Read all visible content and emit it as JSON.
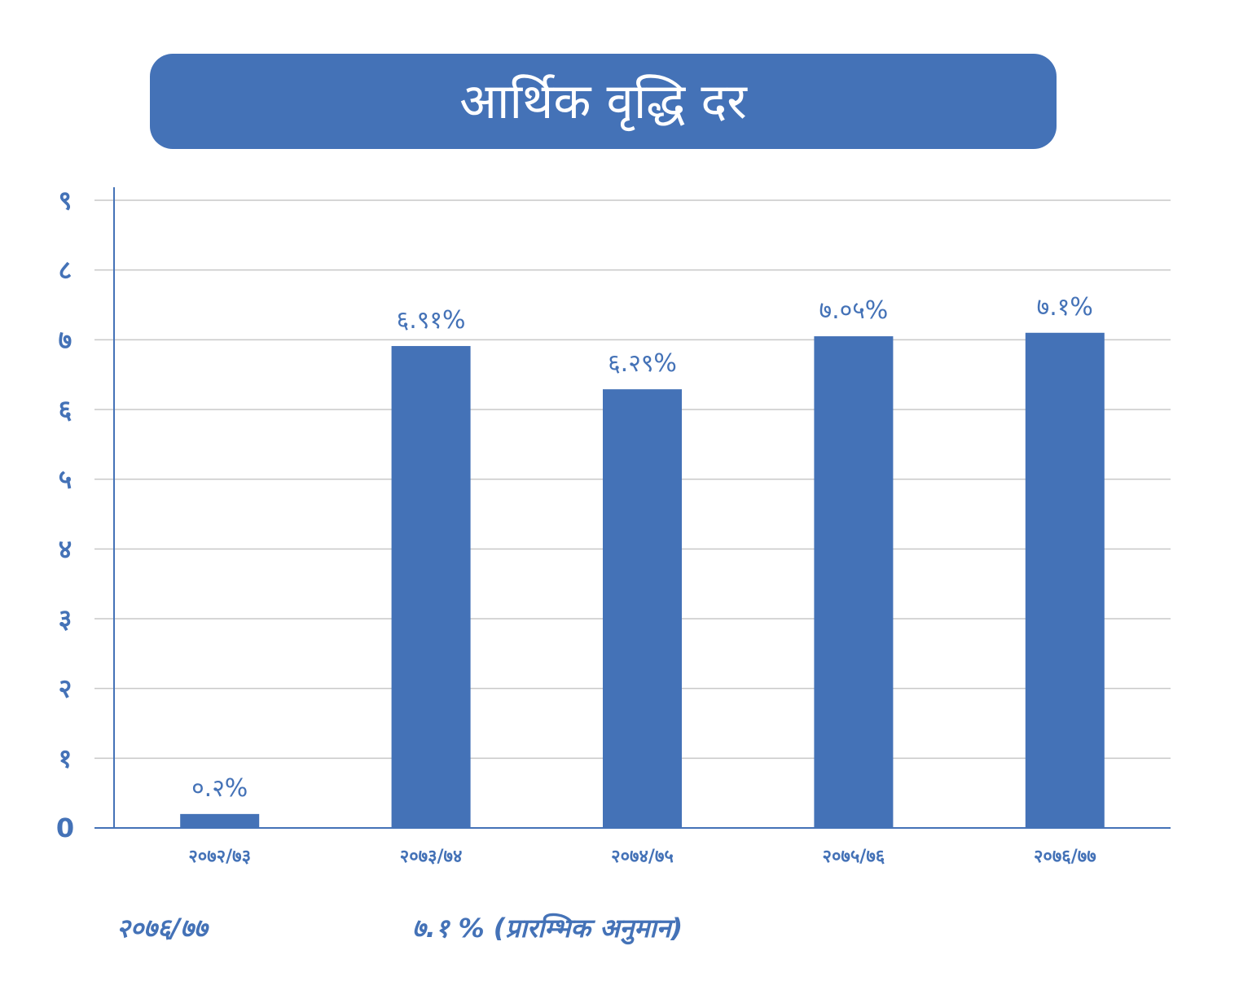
{
  "colors": {
    "accent": "#4472b7",
    "grid": "#c8c8c8",
    "title_text": "#ffffff"
  },
  "chart_data": {
    "type": "bar",
    "title": "आर्थिक वृद्धि दर",
    "xlabel": "",
    "ylabel": "",
    "ylim": [
      0,
      9
    ],
    "yticks": [
      0,
      1,
      2,
      3,
      4,
      5,
      6,
      7,
      8,
      9
    ],
    "ytick_labels": [
      "0",
      "१",
      "२",
      "३",
      "४",
      "५",
      "६",
      "७",
      "८",
      "९"
    ],
    "grid": true,
    "legend": "none",
    "categories": [
      "२०७२/७३",
      "२०७३/७४",
      "२०७४/७५",
      "२०७५/७६",
      "२०७६/७७"
    ],
    "values": [
      0.2,
      6.91,
      6.29,
      7.05,
      7.1
    ],
    "data_labels": [
      "०.२%",
      "६.९१%",
      "६.२९%",
      "७.०५%",
      "७.१%"
    ]
  },
  "footnote": {
    "year": "२०७६/७७",
    "value": "७.१ % (प्रारम्भिक अनुमान)"
  }
}
